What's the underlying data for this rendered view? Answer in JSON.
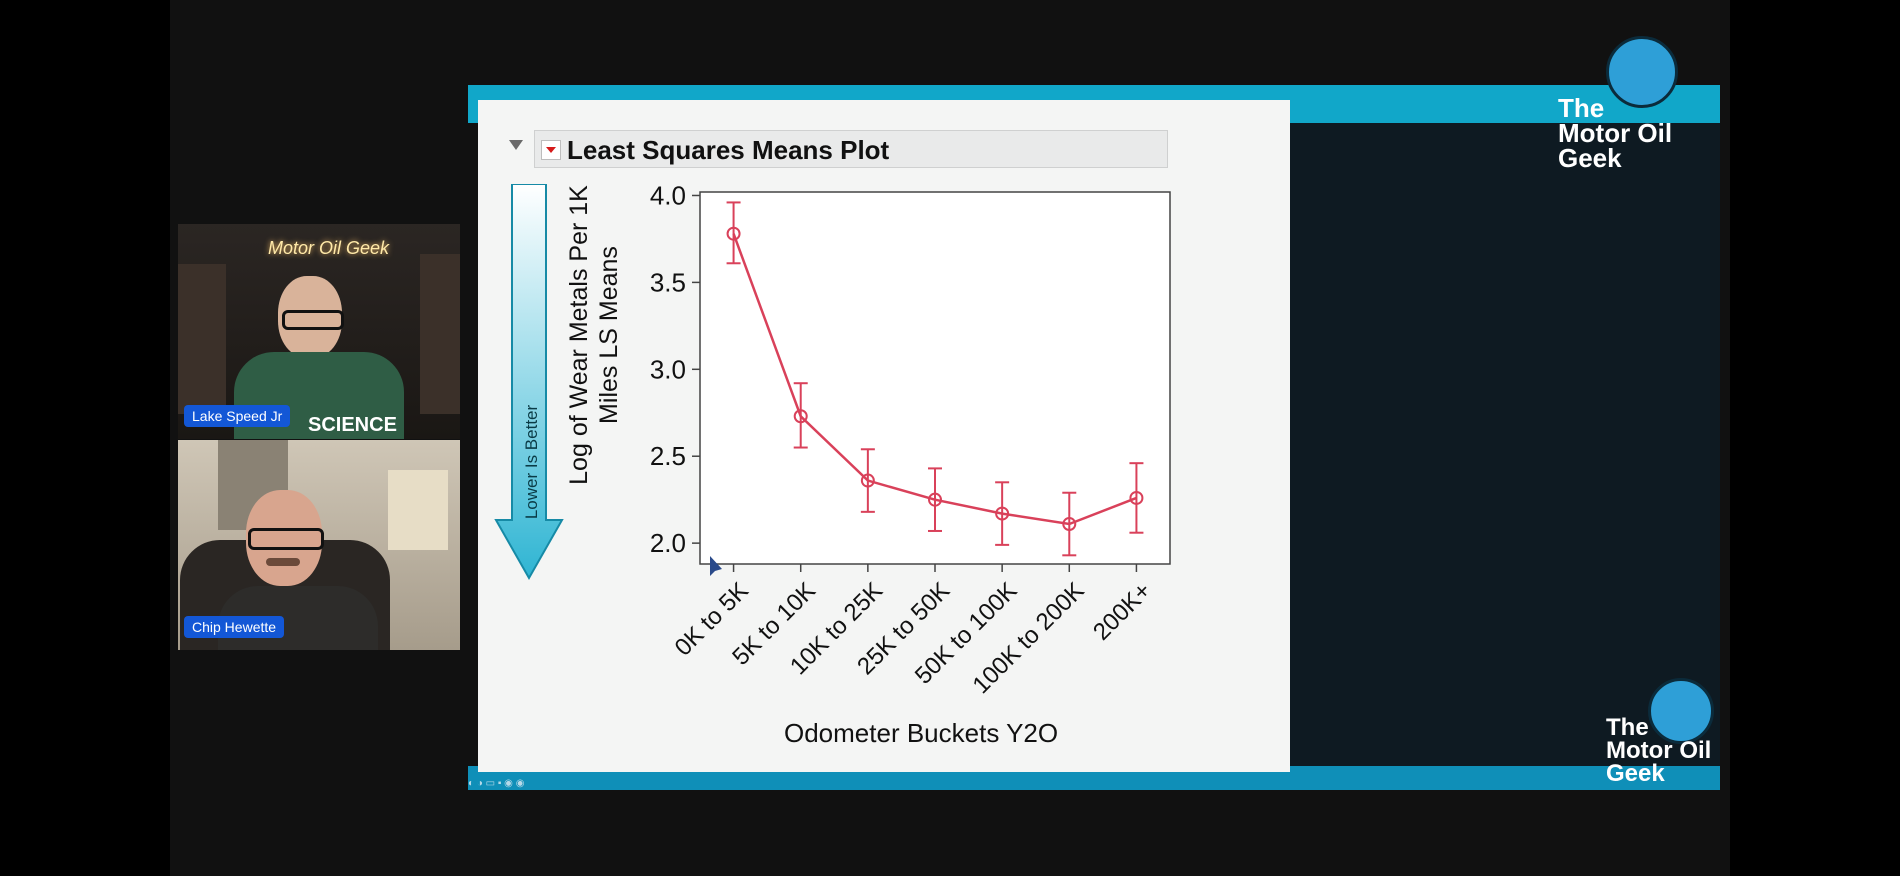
{
  "participants": [
    {
      "name": "Lake Speed Jr",
      "wall_sign": "Motor Oil Geek",
      "shirt_text": "SCIENCE"
    },
    {
      "name": "Chip Hewette"
    }
  ],
  "branding": {
    "logo_line1": "The",
    "logo_line2": "Motor Oil",
    "logo_line3": "Geek"
  },
  "report": {
    "title": "Least Squares Means Plot",
    "side_note": "Lower Is Better"
  },
  "chart_data": {
    "type": "line",
    "xlabel": "Odometer Buckets Y2O",
    "ylabel_line1": "Log of Wear Metals Per 1K",
    "ylabel_line2": "Miles LS Means",
    "categories": [
      "0K to 5K",
      "5K to 10K",
      "10K to 25K",
      "25K to 50K",
      "50K to 100K",
      "100K to 200K",
      "200K+"
    ],
    "values": [
      3.78,
      2.73,
      2.36,
      2.25,
      2.17,
      2.11,
      2.26
    ],
    "error_low": [
      3.61,
      2.55,
      2.18,
      2.07,
      1.99,
      1.93,
      2.06
    ],
    "error_high": [
      3.96,
      2.92,
      2.54,
      2.43,
      2.35,
      2.29,
      2.46
    ],
    "ylim": [
      1.88,
      4.02
    ],
    "yticks": [
      "2.0",
      "2.5",
      "3.0",
      "3.5",
      "4.0"
    ],
    "series_color": "#d9415a"
  }
}
